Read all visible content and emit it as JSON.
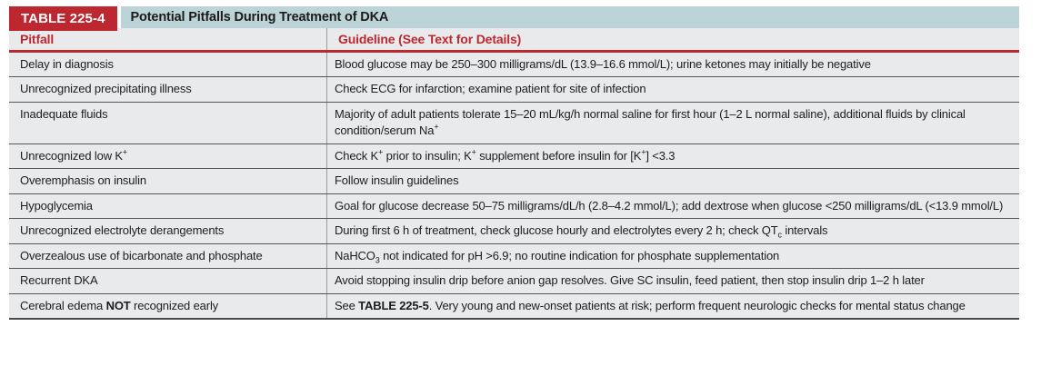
{
  "header": {
    "table_label": "TABLE 225-4",
    "table_title": "Potential Pitfalls During Treatment of DKA"
  },
  "columns": [
    {
      "label": "Pitfall"
    },
    {
      "label": "Guideline (See Text for Details)"
    }
  ],
  "rows": [
    {
      "pitfall": "Delay in diagnosis",
      "guideline": "Blood glucose may be 250–300 milligrams/dL (13.9–16.6 mmol/L); urine ketones may initially be negative"
    },
    {
      "pitfall": "Unrecognized precipitating illness",
      "guideline": "Check ECG for infarction; examine patient for site of infection"
    },
    {
      "pitfall": "Inadequate fluids",
      "guideline": "Majority of adult patients tolerate 15–20 mL/kg/h normal saline for first hour (1–2 L normal saline), additional fluids by clinical condition/serum Na<sup>+</sup>"
    },
    {
      "pitfall": "Unrecognized low K<sup>+</sup>",
      "guideline": "Check K<sup>+</sup> prior to insulin; K<sup>+</sup> supplement before insulin for [K<sup>+</sup>] &lt;3.3"
    },
    {
      "pitfall": "Overemphasis on insulin",
      "guideline": "Follow insulin guidelines"
    },
    {
      "pitfall": "Hypoglycemia",
      "guideline": "Goal for glucose decrease 50–75 milligrams/dL/h (2.8–4.2 mmol/L); add dextrose when glucose &lt;250 milligrams/dL (&lt;13.9 mmol/L)"
    },
    {
      "pitfall": "Unrecognized electrolyte derangements",
      "guideline": "During first 6 h of treatment, check glucose hourly and electrolytes every 2 h; check QT<sub>c</sub> intervals"
    },
    {
      "pitfall": "Overzealous use of bicarbonate and phosphate",
      "guideline": "NaHCO<sub>3</sub> not indicated for pH &gt;6.9; no routine indication for phosphate supplementation"
    },
    {
      "pitfall": "Recurrent DKA",
      "guideline": "Avoid stopping insulin drip before anion gap resolves. Give SC insulin, feed patient, then stop insulin drip 1–2 h later"
    },
    {
      "pitfall": "Cerebral edema <b>NOT</b> recognized early",
      "guideline": "See <b>TABLE 225-5</b>. Very young and new-onset patients at risk; perform frequent neurologic checks for mental status change"
    }
  ],
  "colors": {
    "accent_red": "#bc2730",
    "title_bar_teal": "#bcd4d8",
    "row_gray": "#e9eaec"
  }
}
